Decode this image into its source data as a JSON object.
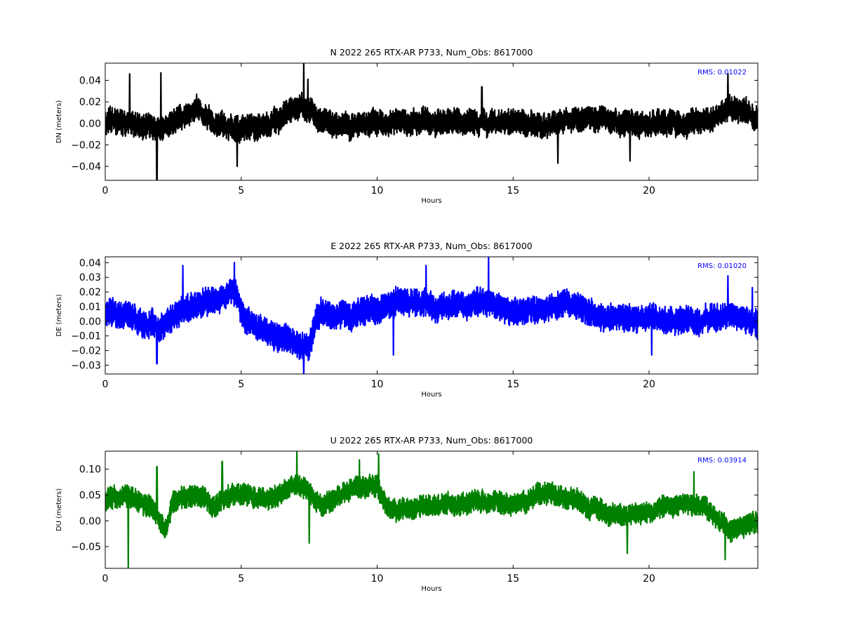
{
  "chart_data": [
    {
      "type": "line",
      "title": "N 2022 265 RTX-AR  P733, Num_Obs: 8617000",
      "xlabel": "Hours",
      "ylabel": "DN (meters)",
      "xlim": [
        0,
        24
      ],
      "ylim": [
        -0.053,
        0.056
      ],
      "xticks": [
        0,
        5,
        10,
        15,
        20
      ],
      "xtick_labels": [
        "0",
        "5",
        "10",
        "15",
        "20"
      ],
      "yticks": [
        0.04,
        0.02,
        0.0,
        -0.02,
        -0.04
      ],
      "ytick_labels": [
        "0.04",
        "0.02",
        "0.00",
        "−0.02",
        "−0.04"
      ],
      "annotation": "RMS:  0.01022",
      "annotation_color": "#0000ff",
      "grid": false,
      "series": [
        {
          "color": "#000000",
          "amplitude": 0.01,
          "trend": [
            [
              0,
              0.002
            ],
            [
              1,
              0.0
            ],
            [
              2,
              -0.006
            ],
            [
              3,
              0.01
            ],
            [
              3.5,
              0.012
            ],
            [
              4,
              0.002
            ],
            [
              5,
              -0.004
            ],
            [
              6,
              -0.004
            ],
            [
              7,
              0.018
            ],
            [
              7.5,
              0.012
            ],
            [
              8,
              -0.002
            ],
            [
              10,
              0.0
            ],
            [
              12,
              0.002
            ],
            [
              14,
              0.0
            ],
            [
              15,
              0.002
            ],
            [
              16,
              -0.004
            ],
            [
              17,
              0.004
            ],
            [
              18,
              0.004
            ],
            [
              19,
              0.0
            ],
            [
              20,
              0.0
            ],
            [
              22,
              0.002
            ],
            [
              23,
              0.014
            ],
            [
              24,
              0.006
            ]
          ],
          "spikes": [
            [
              0.9,
              0.046
            ],
            [
              1.9,
              -0.055
            ],
            [
              2.05,
              0.047
            ],
            [
              4.85,
              -0.04
            ],
            [
              7.3,
              0.056
            ],
            [
              7.45,
              0.041
            ],
            [
              13.85,
              0.034
            ],
            [
              16.65,
              -0.037
            ],
            [
              19.3,
              -0.035
            ],
            [
              22.9,
              0.046
            ]
          ]
        }
      ]
    },
    {
      "type": "line",
      "title": "E 2022 265 RTX-AR  P733, Num_Obs: 8617000",
      "xlabel": "Hours",
      "ylabel": "DE (meters)",
      "xlim": [
        0,
        24
      ],
      "ylim": [
        -0.036,
        0.044
      ],
      "xticks": [
        0,
        5,
        10,
        15,
        20
      ],
      "xtick_labels": [
        "0",
        "5",
        "10",
        "15",
        "20"
      ],
      "yticks": [
        0.04,
        0.03,
        0.02,
        0.01,
        0.0,
        -0.01,
        -0.02,
        -0.03
      ],
      "ytick_labels": [
        "0.04",
        "0.03",
        "0.02",
        "0.01",
        "0.00",
        "−0.01",
        "−0.02",
        "−0.03"
      ],
      "annotation": "RMS:  0.01020",
      "annotation_color": "#0000ff",
      "grid": false,
      "series": [
        {
          "color": "#0000ff",
          "amplitude": 0.008,
          "trend": [
            [
              0,
              0.005
            ],
            [
              1,
              0.002
            ],
            [
              2,
              -0.005
            ],
            [
              3,
              0.01
            ],
            [
              4,
              0.014
            ],
            [
              4.8,
              0.02
            ],
            [
              5,
              0.005
            ],
            [
              6,
              -0.008
            ],
            [
              7,
              -0.014
            ],
            [
              7.5,
              -0.018
            ],
            [
              7.7,
              0.0
            ],
            [
              8,
              0.006
            ],
            [
              9,
              0.004
            ],
            [
              10,
              0.01
            ],
            [
              11,
              0.012
            ],
            [
              12,
              0.01
            ],
            [
              13,
              0.01
            ],
            [
              14,
              0.014
            ],
            [
              15,
              0.008
            ],
            [
              16,
              0.008
            ],
            [
              17,
              0.014
            ],
            [
              18,
              0.004
            ],
            [
              19,
              0.002
            ],
            [
              20,
              0.002
            ],
            [
              21,
              0.0
            ],
            [
              22,
              0.002
            ],
            [
              23,
              0.005
            ],
            [
              24,
              -0.004
            ]
          ],
          "spikes": [
            [
              1.9,
              -0.029
            ],
            [
              2.85,
              0.038
            ],
            [
              4.75,
              0.04
            ],
            [
              7.3,
              -0.036
            ],
            [
              10.6,
              -0.023
            ],
            [
              11.8,
              0.038
            ],
            [
              14.1,
              0.044
            ],
            [
              20.1,
              -0.023
            ],
            [
              22.9,
              0.031
            ],
            [
              23.8,
              0.023
            ]
          ]
        }
      ]
    },
    {
      "type": "line",
      "title": "U 2022 265 RTX-AR  P733, Num_Obs: 8617000",
      "xlabel": "Hours",
      "ylabel": "DU (meters)",
      "xlim": [
        0,
        24
      ],
      "ylim": [
        -0.092,
        0.135
      ],
      "xticks": [
        0,
        5,
        10,
        15,
        20
      ],
      "xtick_labels": [
        "0",
        "5",
        "10",
        "15",
        "20"
      ],
      "yticks": [
        0.1,
        0.05,
        0.0,
        -0.05
      ],
      "ytick_labels": [
        "0.10",
        "0.05",
        "0.00",
        "−0.05"
      ],
      "annotation": "RMS:  0.03914",
      "annotation_color": "#0000ff",
      "grid": false,
      "series": [
        {
          "color": "#008000",
          "amplitude": 0.018,
          "trend": [
            [
              0,
              0.04
            ],
            [
              1,
              0.05
            ],
            [
              1.8,
              0.02
            ],
            [
              2.2,
              -0.02
            ],
            [
              2.5,
              0.04
            ],
            [
              3.5,
              0.05
            ],
            [
              4,
              0.03
            ],
            [
              5,
              0.05
            ],
            [
              6,
              0.04
            ],
            [
              7,
              0.07
            ],
            [
              7.5,
              0.05
            ],
            [
              8,
              0.03
            ],
            [
              9,
              0.06
            ],
            [
              10,
              0.065
            ],
            [
              10.3,
              0.03
            ],
            [
              11,
              0.02
            ],
            [
              12,
              0.03
            ],
            [
              13,
              0.03
            ],
            [
              14,
              0.04
            ],
            [
              15,
              0.03
            ],
            [
              16,
              0.055
            ],
            [
              17,
              0.045
            ],
            [
              18,
              0.02
            ],
            [
              19,
              0.01
            ],
            [
              20,
              0.02
            ],
            [
              21,
              0.03
            ],
            [
              22,
              0.03
            ],
            [
              23,
              -0.02
            ],
            [
              24,
              0.0
            ]
          ],
          "spikes": [
            [
              0.85,
              -0.092
            ],
            [
              1.9,
              0.105
            ],
            [
              4.3,
              0.115
            ],
            [
              7.05,
              0.135
            ],
            [
              7.5,
              -0.043
            ],
            [
              9.35,
              0.118
            ],
            [
              10.05,
              0.13
            ],
            [
              19.2,
              -0.063
            ],
            [
              21.65,
              0.095
            ],
            [
              22.8,
              -0.075
            ]
          ]
        }
      ]
    }
  ]
}
